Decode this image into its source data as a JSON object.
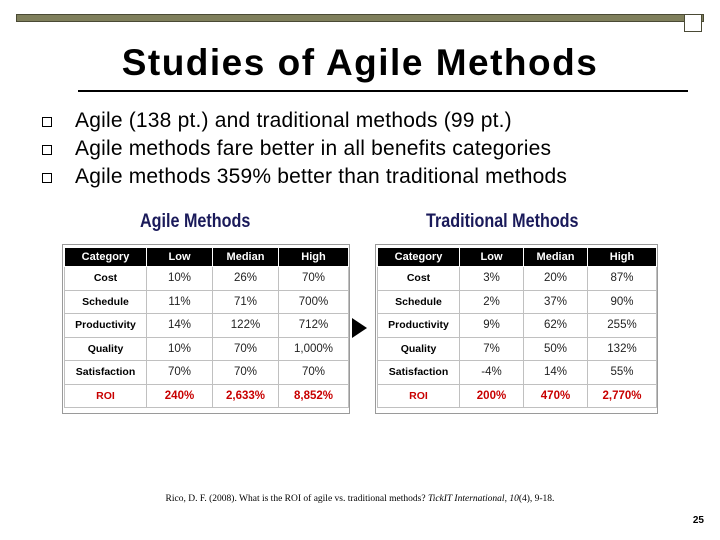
{
  "slide": {
    "title": "Studies of Agile Methods",
    "bullets": [
      "Agile (138 pt.) and traditional methods (99 pt.)",
      "Agile methods fare better in all benefits categories",
      "Agile methods 359% better than traditional methods"
    ],
    "page_number": "25"
  },
  "agile_table": {
    "heading": "Agile Methods",
    "columns": [
      "Category",
      "Low",
      "Median",
      "High"
    ],
    "rows": [
      [
        "Cost",
        "10%",
        "26%",
        "70%"
      ],
      [
        "Schedule",
        "11%",
        "71%",
        "700%"
      ],
      [
        "Productivity",
        "14%",
        "122%",
        "712%"
      ],
      [
        "Quality",
        "10%",
        "70%",
        "1,000%"
      ],
      [
        "Satisfaction",
        "70%",
        "70%",
        "70%"
      ],
      [
        "ROI",
        "240%",
        "2,633%",
        "8,852%"
      ]
    ]
  },
  "traditional_table": {
    "heading": "Traditional Methods",
    "columns": [
      "Category",
      "Low",
      "Median",
      "High"
    ],
    "rows": [
      [
        "Cost",
        "3%",
        "20%",
        "87%"
      ],
      [
        "Schedule",
        "2%",
        "37%",
        "90%"
      ],
      [
        "Productivity",
        "9%",
        "62%",
        "255%"
      ],
      [
        "Quality",
        "7%",
        "50%",
        "132%"
      ],
      [
        "Satisfaction",
        "-4%",
        "14%",
        "55%"
      ],
      [
        "ROI",
        "200%",
        "470%",
        "2,770%"
      ]
    ]
  },
  "citation": {
    "prefix": "Rico, D. F. (2008). What is the ROI of agile vs. traditional methods? ",
    "journal": "TickIT International",
    "separator": ", ",
    "volume": "10",
    "suffix": "(4), 9-18."
  },
  "colors": {
    "header_bar": "#7f7f5c",
    "table_heading": "#1a1a5a",
    "roi_text": "#c80000"
  }
}
